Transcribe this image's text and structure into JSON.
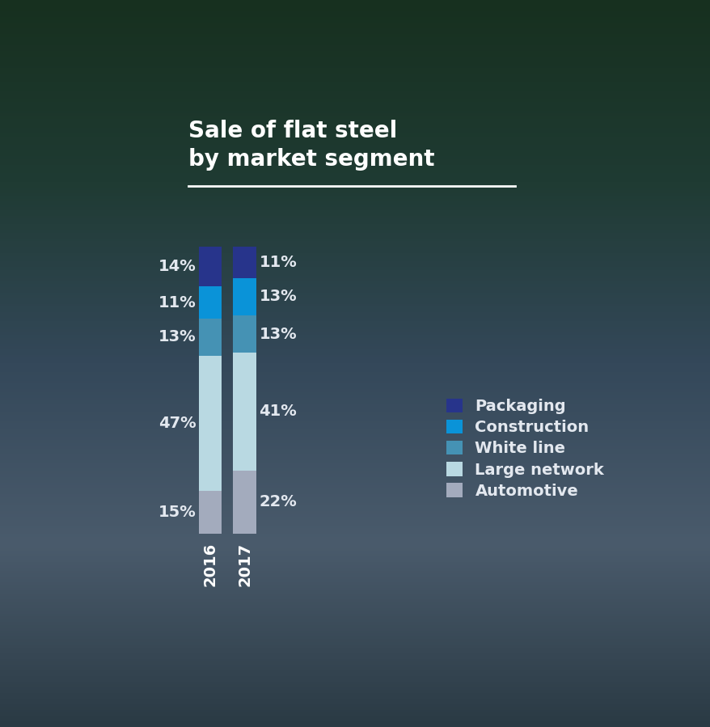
{
  "chart_data": {
    "type": "bar",
    "title": "Sale of flat steel\nby market segment",
    "stacked": true,
    "data_labels": true,
    "tick_labels": "x",
    "legend": "center right",
    "categories": [
      "2016",
      "2017"
    ],
    "series": [
      {
        "name": "Packaging",
        "color": "#27348b",
        "values": [
          14,
          11
        ],
        "value_labels": [
          "14%",
          "11%"
        ]
      },
      {
        "name": "Construction",
        "color": "#0a93d8",
        "values": [
          11,
          13
        ],
        "value_labels": [
          "11%",
          "13%"
        ]
      },
      {
        "name": "White line",
        "color": "#4592b4",
        "values": [
          13,
          13
        ],
        "value_labels": [
          "13%",
          "13%"
        ]
      },
      {
        "name": "Large network",
        "color": "#b9d9e2",
        "values": [
          47,
          41
        ],
        "value_labels": [
          "47%",
          "41%"
        ]
      },
      {
        "name": "Automotive",
        "color": "#a3abbd",
        "values": [
          15,
          22
        ],
        "value_labels": [
          "15%",
          "22%"
        ]
      }
    ]
  }
}
